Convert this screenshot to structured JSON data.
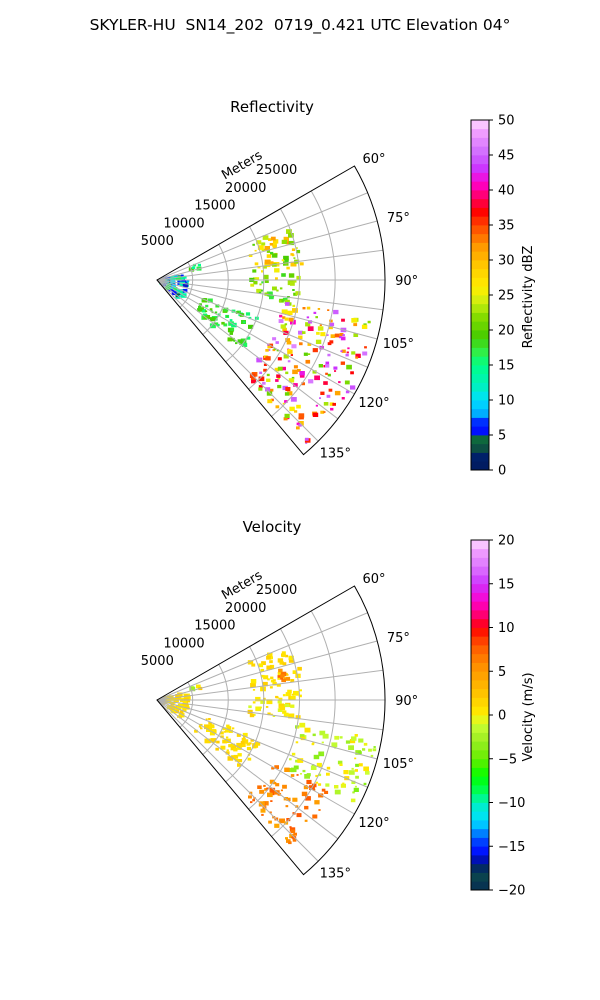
{
  "title": "SKYLER-HU  SN14_202  0719_0.421 UTC Elevation 04°",
  "colors": {
    "grid": "#b0b0b0",
    "reflectivity_stops": [
      [
        0,
        "#021a5e"
      ],
      [
        2,
        "#00206a"
      ],
      [
        3,
        "#0d4d44"
      ],
      [
        4.5,
        "#0e6a3c"
      ],
      [
        5,
        "#0000ff"
      ],
      [
        7,
        "#0033ff"
      ],
      [
        8,
        "#00aaff"
      ],
      [
        10,
        "#00e0ff"
      ],
      [
        12,
        "#00f0c0"
      ],
      [
        15,
        "#00ff88"
      ],
      [
        17,
        "#33ee44"
      ],
      [
        19,
        "#44cc00"
      ],
      [
        22,
        "#88dd00"
      ],
      [
        24,
        "#ccee11"
      ],
      [
        26,
        "#ffee00"
      ],
      [
        29,
        "#ffcc00"
      ],
      [
        32,
        "#ff9900"
      ],
      [
        35,
        "#ff4400"
      ],
      [
        37,
        "#ff0000"
      ],
      [
        39,
        "#ff0066"
      ],
      [
        41,
        "#ff00cc"
      ],
      [
        43,
        "#cc33ff"
      ],
      [
        45,
        "#cc66ff"
      ],
      [
        48,
        "#ee99ff"
      ],
      [
        50,
        "#ffd9ff"
      ]
    ],
    "velocity_stops": [
      [
        -20,
        "#021a5e"
      ],
      [
        -19,
        "#0d4d44"
      ],
      [
        -17,
        "#00206a"
      ],
      [
        -16,
        "#0000ff"
      ],
      [
        -14,
        "#0055ff"
      ],
      [
        -13,
        "#00aaff"
      ],
      [
        -12,
        "#00e0ff"
      ],
      [
        -10,
        "#00f0c0"
      ],
      [
        -9,
        "#00ff66"
      ],
      [
        -7,
        "#00ff00"
      ],
      [
        -5,
        "#66ee00"
      ],
      [
        -3,
        "#99ee22"
      ],
      [
        -1,
        "#ccff33"
      ],
      [
        0,
        "#ffee00"
      ],
      [
        2,
        "#ffcc00"
      ],
      [
        4,
        "#ffaa00"
      ],
      [
        6,
        "#ff8800"
      ],
      [
        8,
        "#ff5500"
      ],
      [
        10,
        "#ff0000"
      ],
      [
        11,
        "#ff0055"
      ],
      [
        13,
        "#ff00cc"
      ],
      [
        15,
        "#cc33ff"
      ],
      [
        17,
        "#dd77ff"
      ],
      [
        18.5,
        "#ee99ff"
      ],
      [
        20,
        "#ffd9ff"
      ]
    ]
  },
  "chart_data": [
    {
      "type": "polar-ppi",
      "title": "Reflectivity",
      "range_label": "Meters",
      "range_ticks": [
        5000,
        10000,
        15000,
        20000,
        25000
      ],
      "range_tick_labels": [
        "5000",
        "10000",
        "15000",
        "20000",
        "25000"
      ],
      "range_max": 32000,
      "azimuth_range_deg": [
        60,
        140
      ],
      "azimuth_ticks": [
        60,
        75,
        90,
        105,
        120,
        135
      ],
      "azimuth_tick_labels": [
        "60°",
        "75°",
        "90°",
        "105°",
        "120°",
        "135°"
      ],
      "colorbar": {
        "label": "Reflectivity dBZ",
        "min": 0,
        "max": 50,
        "ticks": [
          0,
          5,
          10,
          15,
          20,
          25,
          30,
          35,
          40,
          45,
          50
        ],
        "tick_labels": [
          "0",
          "5",
          "10",
          "15",
          "20",
          "25",
          "30",
          "35",
          "40",
          "45",
          "50"
        ]
      },
      "echo_regions": [
        {
          "az_range": [
            68,
            90
          ],
          "r_range": [
            13500,
            20500
          ],
          "value_range": [
            18,
            32
          ]
        },
        {
          "az_range": [
            88,
            100
          ],
          "r_range": [
            13000,
            20000
          ],
          "value_range": [
            17,
            25
          ]
        },
        {
          "az_range": [
            100,
            138
          ],
          "r_range": [
            18000,
            31500
          ],
          "value_range": [
            20,
            47
          ]
        },
        {
          "az_range": [
            110,
            130
          ],
          "r_range": [
            7000,
            15500
          ],
          "value_range": [
            15,
            20
          ]
        },
        {
          "az_range": [
            68,
            76
          ],
          "r_range": [
            5000,
            6500
          ],
          "value_range": [
            14,
            22
          ]
        },
        {
          "az_range": [
            78,
            130
          ],
          "r_range": [
            800,
            4500
          ],
          "value_range": [
            3,
            17
          ]
        }
      ]
    },
    {
      "type": "polar-ppi",
      "title": "Velocity",
      "range_label": "Meters",
      "range_ticks": [
        5000,
        10000,
        15000,
        20000,
        25000
      ],
      "range_tick_labels": [
        "5000",
        "10000",
        "15000",
        "20000",
        "25000"
      ],
      "range_max": 32000,
      "azimuth_range_deg": [
        60,
        140
      ],
      "azimuth_ticks": [
        60,
        75,
        90,
        105,
        120,
        135
      ],
      "azimuth_tick_labels": [
        "60°",
        "75°",
        "90°",
        "105°",
        "120°",
        "135°"
      ],
      "colorbar": {
        "label": "Velocity (m/s)",
        "min": -20,
        "max": 20,
        "ticks": [
          -20,
          -15,
          -10,
          -5,
          0,
          5,
          10,
          15,
          20
        ],
        "tick_labels": [
          "−20",
          "−15",
          "−10",
          "−5",
          "0",
          "5",
          "10",
          "15",
          "20"
        ]
      },
      "echo_regions": [
        {
          "az_range": [
            68,
            90
          ],
          "r_range": [
            13500,
            20500
          ],
          "value_range": [
            0,
            2
          ]
        },
        {
          "az_range": [
            76,
            82
          ],
          "r_range": [
            16000,
            19000
          ],
          "value_range": [
            5,
            8
          ]
        },
        {
          "az_range": [
            88,
            100
          ],
          "r_range": [
            13000,
            20000
          ],
          "value_range": [
            -1,
            2
          ]
        },
        {
          "az_range": [
            100,
            118
          ],
          "r_range": [
            20000,
            31500
          ],
          "value_range": [
            -4,
            1
          ]
        },
        {
          "az_range": [
            118,
            138
          ],
          "r_range": [
            18000,
            28000
          ],
          "value_range": [
            4,
            8
          ]
        },
        {
          "az_range": [
            110,
            130
          ],
          "r_range": [
            7000,
            15500
          ],
          "value_range": [
            0,
            2
          ]
        },
        {
          "az_range": [
            68,
            76
          ],
          "r_range": [
            5000,
            6500
          ],
          "value_range": [
            -3,
            5
          ]
        },
        {
          "az_range": [
            78,
            130
          ],
          "r_range": [
            800,
            4500
          ],
          "value_range": [
            0,
            2
          ]
        }
      ]
    }
  ]
}
